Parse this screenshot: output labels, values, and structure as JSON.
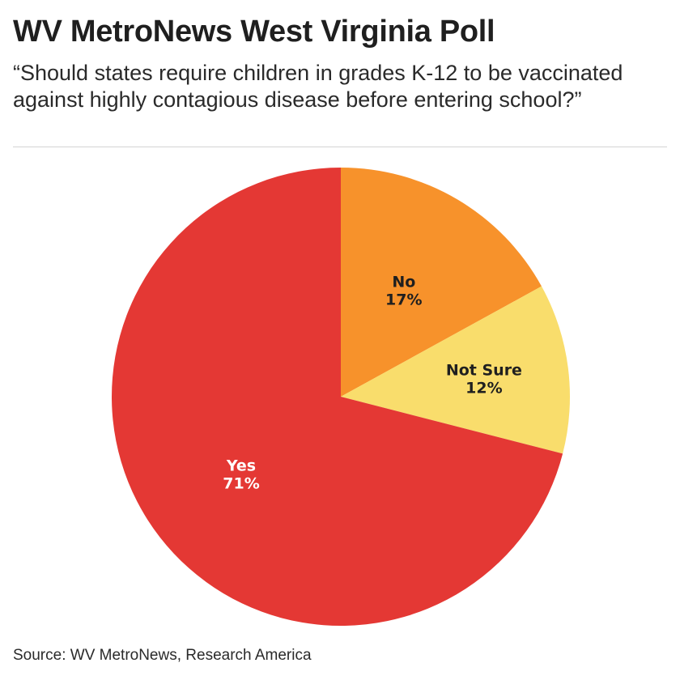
{
  "header": {
    "title": "WV MetroNews West Virginia Poll",
    "subtitle": "“Should states require children in grades K-12 to be vaccinated against highly contagious disease before entering school?”"
  },
  "footer": {
    "source": "Source: WV MetroNews, Research America"
  },
  "chart_data": {
    "type": "pie",
    "title": "WV MetroNews West Virginia Poll",
    "subtitle": "“Should states require children in grades K-12 to be vaccinated against highly contagious disease before entering school?”",
    "start_angle_deg": 0,
    "direction": "clockwise",
    "legend": "none",
    "slices": [
      {
        "label": "No",
        "value": 17,
        "display": "17%",
        "color": "#F7922B",
        "text_color": "#1f1f1f"
      },
      {
        "label": "Not Sure",
        "value": 12,
        "display": "12%",
        "color": "#F9DD6C",
        "text_color": "#1f1f1f"
      },
      {
        "label": "Yes",
        "value": 71,
        "display": "71%",
        "color": "#E43834",
        "text_color": "#ffffff"
      }
    ]
  }
}
